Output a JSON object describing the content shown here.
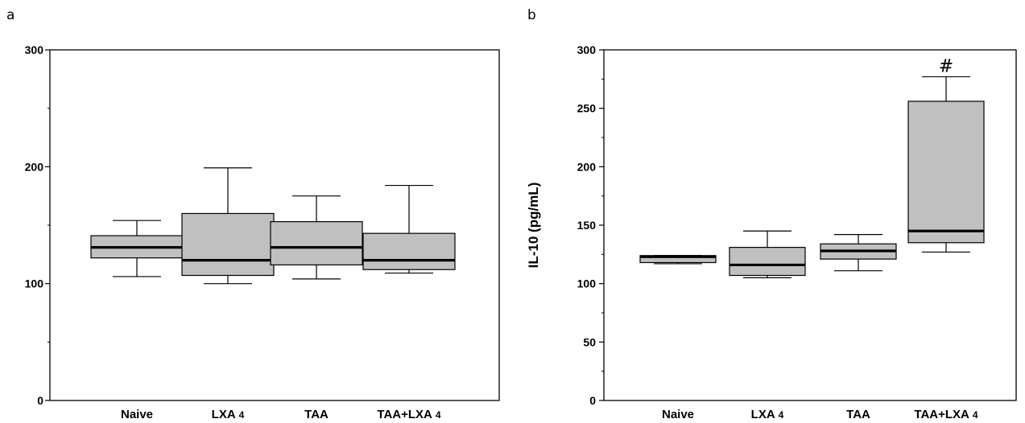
{
  "chart_data": [
    {
      "panel": "a",
      "type": "box",
      "ylabel": "",
      "ylim": [
        0,
        300
      ],
      "yticks": [
        {
          "value": 0,
          "label": "0"
        },
        {
          "value": 100,
          "label": "100"
        },
        {
          "value": 200,
          "label": "200"
        },
        {
          "value": 300,
          "label": "300"
        }
      ],
      "categories": [
        {
          "name": "Naive",
          "sub": ""
        },
        {
          "name": "LXA",
          "sub": "4"
        },
        {
          "name": "TAA",
          "sub": ""
        },
        {
          "name": "TAA+LXA",
          "sub": "4"
        }
      ],
      "boxes": [
        {
          "min": 106,
          "q1": 122,
          "median": 131,
          "q3": 141,
          "max": 154
        },
        {
          "min": 100,
          "q1": 107,
          "median": 120,
          "q3": 160,
          "max": 199
        },
        {
          "min": 104,
          "q1": 116,
          "median": 131,
          "q3": 153,
          "max": 175
        },
        {
          "min": 109,
          "q1": 112,
          "median": 120,
          "q3": 143,
          "max": 184
        }
      ],
      "annotations": [],
      "colors": {
        "box_fill": "#c0c0c0",
        "median": "#000000"
      }
    },
    {
      "panel": "b",
      "type": "box",
      "ylabel": "IL-10 (pg/mL)",
      "ylim": [
        0,
        300
      ],
      "yticks": [
        {
          "value": 0,
          "label": "0"
        },
        {
          "value": 50,
          "label": "50"
        },
        {
          "value": 100,
          "label": "100"
        },
        {
          "value": 150,
          "label": "150"
        },
        {
          "value": 200,
          "label": "200"
        },
        {
          "value": 250,
          "label": "250"
        },
        {
          "value": 300,
          "label": "300"
        }
      ],
      "categories": [
        {
          "name": "Naive",
          "sub": ""
        },
        {
          "name": "LXA",
          "sub": "4"
        },
        {
          "name": "TAA",
          "sub": ""
        },
        {
          "name": "TAA+LXA",
          "sub": "4"
        }
      ],
      "boxes": [
        {
          "min": 117,
          "q1": 118,
          "median": 123,
          "q3": 124,
          "max": 124
        },
        {
          "min": 105,
          "q1": 107,
          "median": 116,
          "q3": 131,
          "max": 145
        },
        {
          "min": 111,
          "q1": 121,
          "median": 128,
          "q3": 134,
          "max": 142
        },
        {
          "min": 127,
          "q1": 135,
          "median": 145,
          "q3": 256,
          "max": 277
        }
      ],
      "annotations": [
        {
          "category": 3,
          "text": "#"
        }
      ],
      "colors": {
        "box_fill": "#c0c0c0",
        "median": "#000000"
      }
    }
  ]
}
